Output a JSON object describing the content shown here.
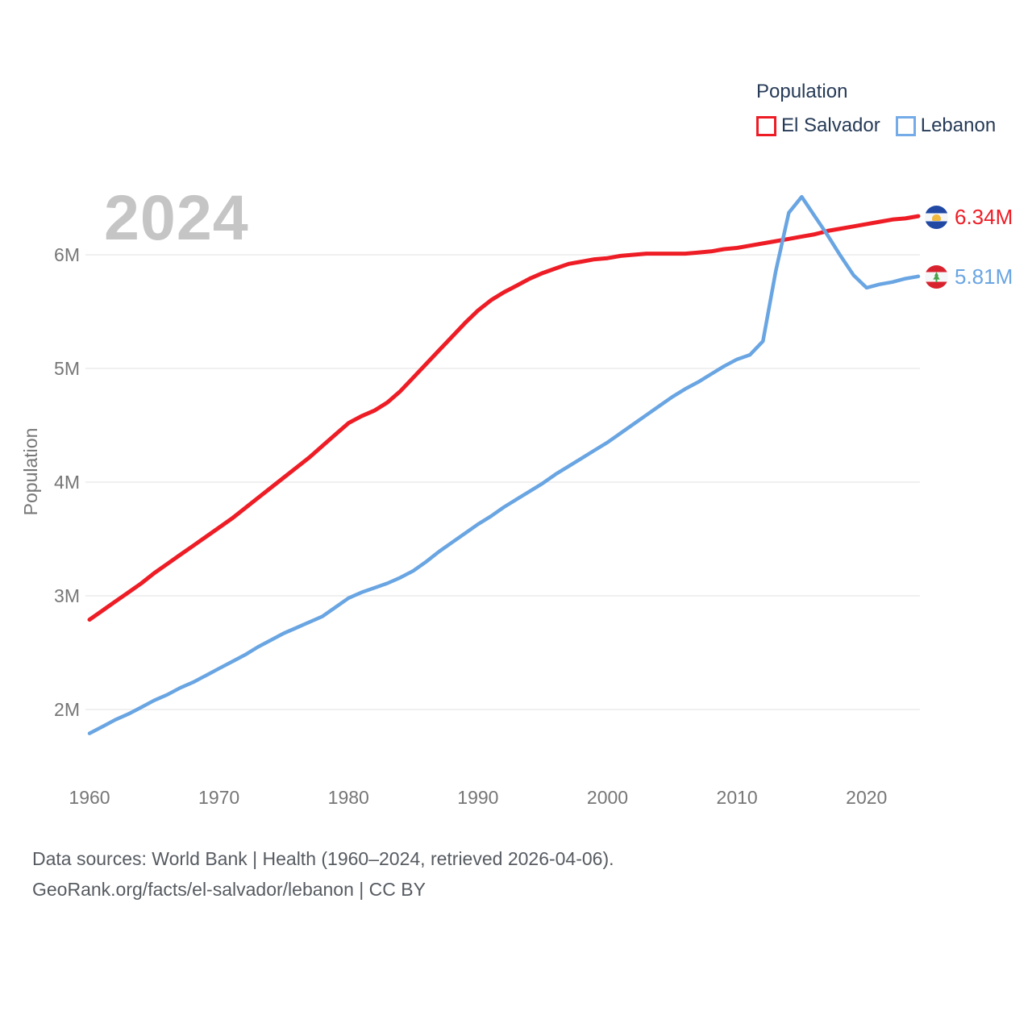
{
  "watermark": "2024",
  "legend": {
    "title": "Population",
    "items": [
      {
        "label": "El Salvador",
        "color": "#ee1c25"
      },
      {
        "label": "Lebanon",
        "color": "#74abe8"
      }
    ]
  },
  "end_labels": [
    {
      "series": "El Salvador",
      "value": "6.34M",
      "color": "#ee1c25",
      "flag": "el-salvador-flag"
    },
    {
      "series": "Lebanon",
      "value": "5.81M",
      "color": "#69a5e2",
      "flag": "lebanon-flag"
    }
  ],
  "footer": {
    "line1": "Data sources: World Bank | Health (1960–2024, retrieved 2026-04-06).",
    "line2": "GeoRank.org/facts/el-salvador/lebanon | CC BY"
  },
  "chart_data": {
    "type": "line",
    "title": "Population",
    "xlabel": "",
    "ylabel": "Population",
    "grid": true,
    "legend_position": "top-right",
    "xlim": [
      1960,
      2024
    ],
    "ylim": [
      1.55,
      6.75
    ],
    "xticks": [
      1960,
      1970,
      1980,
      1990,
      2000,
      2010,
      2020
    ],
    "yticks": [
      {
        "value": 2,
        "label": "2M"
      },
      {
        "value": 3,
        "label": "3M"
      },
      {
        "value": 4,
        "label": "4M"
      },
      {
        "value": 5,
        "label": "5M"
      },
      {
        "value": 6,
        "label": "6M"
      }
    ],
    "x": [
      1960,
      1961,
      1962,
      1963,
      1964,
      1965,
      1966,
      1967,
      1968,
      1969,
      1970,
      1971,
      1972,
      1973,
      1974,
      1975,
      1976,
      1977,
      1978,
      1979,
      1980,
      1981,
      1982,
      1983,
      1984,
      1985,
      1986,
      1987,
      1988,
      1989,
      1990,
      1991,
      1992,
      1993,
      1994,
      1995,
      1996,
      1997,
      1998,
      1999,
      2000,
      2001,
      2002,
      2003,
      2004,
      2005,
      2006,
      2007,
      2008,
      2009,
      2010,
      2011,
      2012,
      2013,
      2014,
      2015,
      2016,
      2017,
      2018,
      2019,
      2020,
      2021,
      2022,
      2023,
      2024
    ],
    "series": [
      {
        "name": "El Salvador",
        "color": "#ee1c25",
        "unit": "millions",
        "values": [
          2.79,
          2.87,
          2.95,
          3.03,
          3.11,
          3.2,
          3.28,
          3.36,
          3.44,
          3.52,
          3.6,
          3.68,
          3.77,
          3.86,
          3.95,
          4.04,
          4.13,
          4.22,
          4.32,
          4.42,
          4.52,
          4.58,
          4.63,
          4.7,
          4.8,
          4.92,
          5.04,
          5.16,
          5.28,
          5.4,
          5.51,
          5.6,
          5.67,
          5.73,
          5.79,
          5.84,
          5.88,
          5.92,
          5.94,
          5.96,
          5.97,
          5.99,
          6.0,
          6.01,
          6.01,
          6.01,
          6.01,
          6.02,
          6.03,
          6.05,
          6.06,
          6.08,
          6.1,
          6.12,
          6.14,
          6.16,
          6.18,
          6.21,
          6.23,
          6.25,
          6.27,
          6.29,
          6.31,
          6.32,
          6.34
        ]
      },
      {
        "name": "Lebanon",
        "color": "#69a5e2",
        "unit": "millions",
        "values": [
          1.79,
          1.85,
          1.91,
          1.96,
          2.02,
          2.08,
          2.13,
          2.19,
          2.24,
          2.3,
          2.36,
          2.42,
          2.48,
          2.55,
          2.61,
          2.67,
          2.72,
          2.77,
          2.82,
          2.9,
          2.98,
          3.03,
          3.07,
          3.11,
          3.16,
          3.22,
          3.3,
          3.39,
          3.47,
          3.55,
          3.63,
          3.7,
          3.78,
          3.85,
          3.92,
          3.99,
          4.07,
          4.14,
          4.21,
          4.28,
          4.35,
          4.43,
          4.51,
          4.59,
          4.67,
          4.75,
          4.82,
          4.88,
          4.95,
          5.02,
          5.08,
          5.12,
          5.24,
          5.86,
          6.37,
          6.51,
          6.34,
          6.17,
          5.99,
          5.82,
          5.71,
          5.74,
          5.76,
          5.79,
          5.81
        ]
      }
    ]
  }
}
